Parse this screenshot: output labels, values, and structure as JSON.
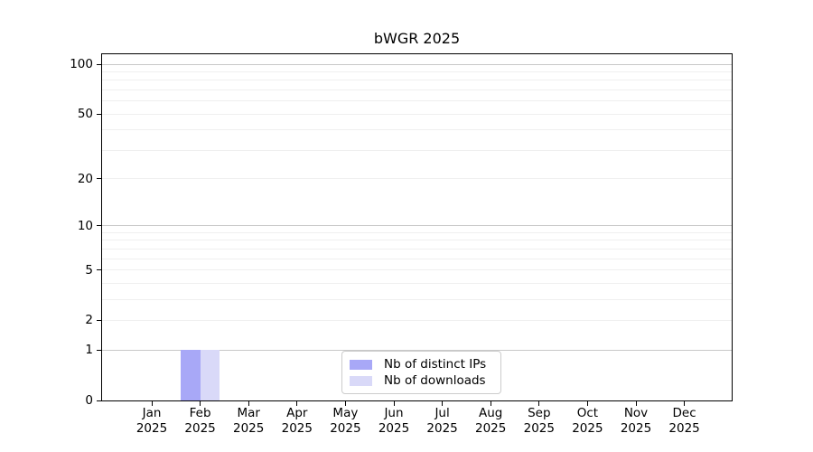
{
  "chart_data": {
    "type": "bar",
    "title": "bWGR 2025",
    "categories": [
      "Jan",
      "Feb",
      "Mar",
      "Apr",
      "May",
      "Jun",
      "Jul",
      "Aug",
      "Sep",
      "Oct",
      "Nov",
      "Dec"
    ],
    "category_year": "2025",
    "series": [
      {
        "name": "Nb of distinct IPs",
        "color": "#a8a8f7",
        "values": [
          0,
          1,
          0,
          0,
          0,
          0,
          0,
          0,
          0,
          0,
          0,
          0
        ]
      },
      {
        "name": "Nb of downloads",
        "color": "#d9d9f8",
        "values": [
          0,
          1,
          0,
          0,
          0,
          0,
          0,
          0,
          0,
          0,
          0,
          0
        ]
      }
    ],
    "xlabel": "",
    "ylabel": "",
    "y_scale": "log1p",
    "y_ticks": [
      0,
      1,
      2,
      5,
      10,
      20,
      50,
      100
    ],
    "ylim": [
      0,
      115
    ],
    "grid": {
      "major_at": [
        1,
        10,
        100
      ],
      "minor_at": [
        2,
        3,
        4,
        5,
        6,
        7,
        8,
        9,
        20,
        30,
        40,
        50,
        60,
        70,
        80,
        90
      ],
      "major_color": "#c8c8c8",
      "minor_color": "#efefef"
    },
    "legend": {
      "position": "lower-center-inside",
      "entries": [
        "Nb of distinct IPs",
        "Nb of downloads"
      ]
    }
  },
  "colors": {
    "background": "#ffffff",
    "spine": "#000000",
    "text": "#000000"
  }
}
